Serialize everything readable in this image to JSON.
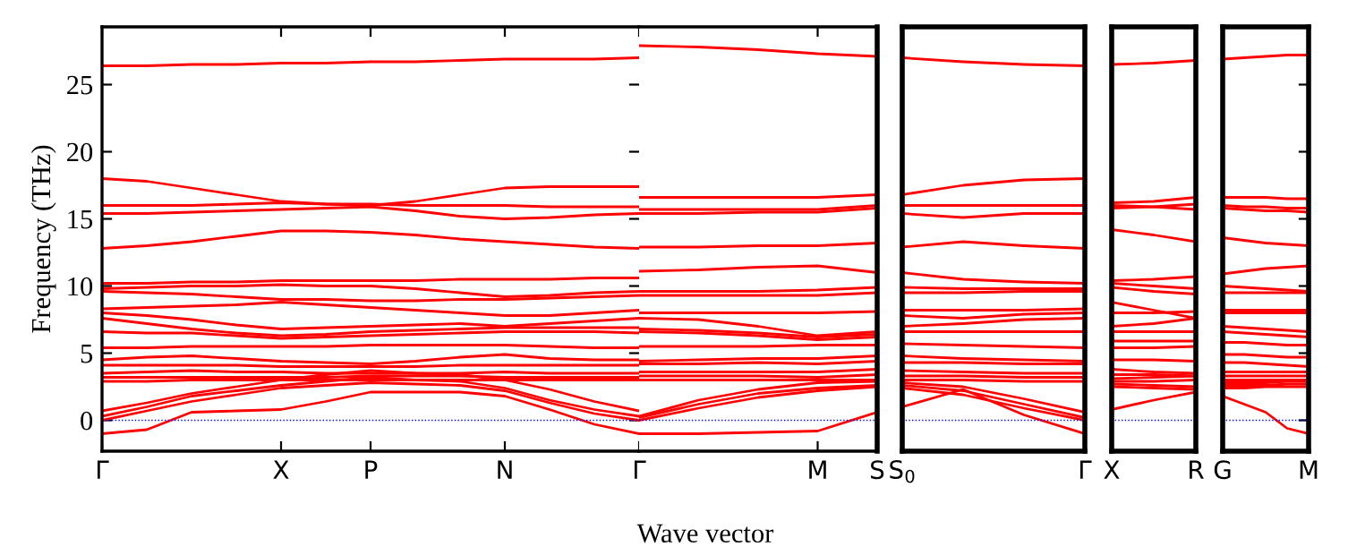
{
  "chart_data": [
    {
      "type": "line",
      "ylabel": "Frequency (THz)",
      "xlabel": "Wave vector",
      "color": "#ff0000",
      "legend": false,
      "grid": false,
      "line_style": "solid",
      "marker": "none",
      "categories": [
        "Γ",
        null,
        null,
        null,
        "X",
        null,
        "P",
        null,
        null,
        "N",
        null,
        null,
        "Γ"
      ],
      "ylim": [
        -2.3,
        29.3
      ],
      "yticks": [
        0,
        5,
        10,
        15,
        20,
        25
      ],
      "ref_lines": [
        {
          "axis": "y",
          "value": 0,
          "label": null,
          "color": "#0000ff",
          "line_style": "dotted"
        }
      ],
      "series": [
        {
          "values": [
            26.4,
            26.4,
            26.5,
            26.5,
            26.6,
            26.6,
            26.7,
            26.7,
            26.8,
            26.9,
            26.9,
            26.9,
            27.0
          ]
        },
        {
          "values": [
            18.0,
            17.8,
            17.3,
            16.8,
            16.3,
            16.1,
            16.0,
            16.3,
            16.8,
            17.3,
            17.4,
            17.4,
            17.4
          ]
        },
        {
          "values": [
            16.0,
            16.0,
            16.0,
            16.1,
            16.2,
            16.1,
            16.1,
            16.0,
            16.0,
            16.0,
            15.9,
            15.9,
            15.9
          ]
        },
        {
          "values": [
            15.4,
            15.4,
            15.5,
            15.6,
            15.7,
            15.8,
            15.9,
            15.6,
            15.2,
            15.0,
            15.1,
            15.3,
            15.4
          ]
        },
        {
          "values": [
            12.8,
            13.0,
            13.3,
            13.7,
            14.1,
            14.1,
            14.0,
            13.8,
            13.5,
            13.3,
            13.1,
            12.9,
            12.8
          ]
        },
        {
          "values": [
            10.2,
            10.2,
            10.3,
            10.3,
            10.4,
            10.4,
            10.4,
            10.4,
            10.5,
            10.5,
            10.5,
            10.6,
            10.6
          ]
        },
        {
          "values": [
            9.8,
            9.9,
            10.0,
            10.0,
            10.1,
            10.0,
            10.0,
            9.8,
            9.5,
            9.2,
            9.3,
            9.5,
            9.6
          ]
        },
        {
          "values": [
            9.6,
            9.5,
            9.4,
            9.2,
            9.0,
            9.0,
            8.9,
            8.9,
            9.0,
            9.0,
            9.1,
            9.2,
            9.3
          ]
        },
        {
          "values": [
            8.3,
            8.4,
            8.5,
            8.6,
            8.8,
            8.6,
            8.4,
            8.2,
            8.0,
            7.8,
            7.8,
            8.0,
            8.2
          ]
        },
        {
          "values": [
            8.0,
            7.8,
            7.5,
            7.1,
            6.8,
            6.9,
            7.0,
            7.1,
            7.2,
            7.0,
            7.2,
            7.4,
            7.6
          ]
        },
        {
          "values": [
            7.6,
            7.2,
            6.8,
            6.5,
            6.3,
            6.4,
            6.6,
            6.7,
            6.8,
            6.9,
            6.9,
            6.9,
            6.9
          ]
        },
        {
          "values": [
            6.6,
            6.5,
            6.5,
            6.3,
            6.1,
            6.2,
            6.3,
            6.4,
            6.5,
            6.6,
            6.6,
            6.6,
            6.5
          ]
        },
        {
          "values": [
            5.4,
            5.4,
            5.5,
            5.5,
            5.5,
            5.5,
            5.6,
            5.6,
            5.6,
            5.6,
            5.5,
            5.4,
            5.4
          ]
        },
        {
          "values": [
            4.5,
            4.7,
            4.8,
            4.6,
            4.4,
            4.3,
            4.2,
            4.4,
            4.7,
            4.9,
            4.6,
            4.5,
            4.5
          ]
        },
        {
          "values": [
            4.1,
            4.1,
            4.1,
            4.1,
            4.0,
            4.0,
            4.0,
            4.0,
            4.1,
            4.1,
            4.1,
            4.1,
            4.1
          ]
        },
        {
          "values": [
            3.5,
            3.6,
            3.7,
            3.6,
            3.6,
            3.5,
            3.5,
            3.5,
            3.5,
            3.6,
            3.5,
            3.5,
            3.5
          ]
        },
        {
          "values": [
            3.2,
            3.2,
            3.2,
            3.2,
            3.2,
            3.2,
            3.3,
            3.3,
            3.3,
            3.2,
            3.2,
            3.2,
            3.2
          ]
        },
        {
          "values": [
            2.9,
            2.9,
            3.0,
            3.0,
            3.0,
            3.0,
            3.0,
            3.0,
            3.0,
            3.0,
            3.0,
            3.0,
            3.0
          ]
        },
        {
          "values": [
            0.7,
            1.3,
            2.0,
            2.5,
            3.0,
            3.4,
            3.7,
            3.5,
            3.4,
            3.0,
            2.3,
            1.4,
            0.7
          ]
        },
        {
          "values": [
            0.3,
            1.0,
            1.8,
            2.2,
            2.6,
            2.9,
            3.2,
            3.0,
            2.9,
            2.4,
            1.5,
            0.8,
            0.3
          ]
        },
        {
          "values": [
            0.0,
            0.7,
            1.4,
            1.9,
            2.4,
            2.6,
            2.8,
            2.7,
            2.6,
            2.2,
            1.3,
            0.5,
            0.0
          ]
        },
        {
          "values": [
            -1.0,
            -0.7,
            0.6,
            0.7,
            0.8,
            1.4,
            2.1,
            2.1,
            2.1,
            1.8,
            0.8,
            -0.3,
            -1.0
          ]
        }
      ]
    },
    {
      "type": "line",
      "color": "#ff0000",
      "legend": false,
      "grid": false,
      "line_style": "solid",
      "marker": "none",
      "tick_labels": "x",
      "categories": [
        null,
        null,
        null,
        "M",
        "S"
      ],
      "ylim": [
        -2.3,
        29.3
      ],
      "ref_lines": [
        {
          "axis": "y",
          "value": 0,
          "label": null,
          "color": "#0000ff",
          "line_style": "dotted"
        }
      ],
      "series": [
        {
          "values": [
            27.9,
            27.8,
            27.6,
            27.3,
            27.1
          ]
        },
        {
          "values": [
            16.6,
            16.6,
            16.6,
            16.6,
            16.8
          ]
        },
        {
          "values": [
            15.7,
            15.7,
            15.7,
            15.7,
            16.0
          ]
        },
        {
          "values": [
            15.4,
            15.4,
            15.5,
            15.5,
            15.8
          ]
        },
        {
          "values": [
            12.9,
            12.9,
            13.0,
            13.0,
            13.2
          ]
        },
        {
          "values": [
            11.1,
            11.2,
            11.4,
            11.5,
            11.0
          ]
        },
        {
          "values": [
            9.6,
            9.6,
            9.6,
            9.7,
            9.9
          ]
        },
        {
          "values": [
            9.3,
            9.3,
            9.3,
            9.3,
            9.5
          ]
        },
        {
          "values": [
            8.0,
            8.0,
            8.0,
            8.0,
            8.1
          ]
        },
        {
          "values": [
            7.6,
            7.5,
            7.0,
            6.3,
            6.6
          ]
        },
        {
          "values": [
            6.8,
            6.7,
            6.5,
            6.2,
            6.4
          ]
        },
        {
          "values": [
            6.6,
            6.5,
            6.3,
            6.0,
            6.2
          ]
        },
        {
          "values": [
            5.5,
            5.5,
            5.5,
            5.6,
            5.6
          ]
        },
        {
          "values": [
            4.4,
            4.5,
            4.6,
            4.6,
            4.8
          ]
        },
        {
          "values": [
            4.2,
            4.2,
            4.3,
            4.2,
            4.4
          ]
        },
        {
          "values": [
            3.6,
            3.6,
            3.6,
            3.6,
            3.8
          ]
        },
        {
          "values": [
            3.3,
            3.3,
            3.3,
            3.2,
            3.4
          ]
        },
        {
          "values": [
            3.0,
            3.0,
            3.0,
            3.0,
            3.0
          ]
        },
        {
          "values": [
            0.3,
            1.5,
            2.3,
            2.8,
            2.9
          ]
        },
        {
          "values": [
            0.2,
            1.2,
            2.0,
            2.4,
            2.6
          ]
        },
        {
          "values": [
            0.0,
            0.9,
            1.7,
            2.2,
            2.5
          ]
        },
        {
          "values": [
            -1.0,
            -1.0,
            -0.9,
            -0.8,
            0.6
          ]
        }
      ]
    },
    {
      "type": "line",
      "color": "#ff0000",
      "legend": false,
      "grid": false,
      "line_style": "solid",
      "marker": "none",
      "tick_labels": "x",
      "categories": [
        "S$_{0}$",
        null,
        null,
        "Γ"
      ],
      "ylim": [
        -2.3,
        29.3
      ],
      "ref_lines": [
        {
          "axis": "y",
          "value": 0,
          "label": null,
          "color": "#0000ff",
          "line_style": "dotted"
        }
      ],
      "series": [
        {
          "values": [
            27.0,
            26.7,
            26.5,
            26.4
          ]
        },
        {
          "values": [
            16.8,
            17.5,
            17.9,
            18.0
          ]
        },
        {
          "values": [
            16.0,
            16.0,
            16.0,
            16.0
          ]
        },
        {
          "values": [
            15.4,
            15.1,
            15.4,
            15.4
          ]
        },
        {
          "values": [
            12.9,
            13.3,
            13.0,
            12.8
          ]
        },
        {
          "values": [
            11.0,
            10.5,
            10.3,
            10.2
          ]
        },
        {
          "values": [
            9.9,
            9.8,
            9.8,
            9.8
          ]
        },
        {
          "values": [
            9.5,
            9.5,
            9.6,
            9.6
          ]
        },
        {
          "values": [
            8.2,
            8.2,
            8.2,
            8.3
          ]
        },
        {
          "values": [
            7.8,
            7.6,
            7.9,
            8.0
          ]
        },
        {
          "values": [
            7.0,
            7.2,
            7.5,
            7.6
          ]
        },
        {
          "values": [
            6.6,
            6.6,
            6.6,
            6.6
          ]
        },
        {
          "values": [
            5.7,
            5.6,
            5.5,
            5.4
          ]
        },
        {
          "values": [
            4.8,
            4.6,
            4.5,
            4.4
          ]
        },
        {
          "values": [
            4.3,
            4.3,
            4.2,
            4.2
          ]
        },
        {
          "values": [
            3.7,
            3.6,
            3.5,
            3.5
          ]
        },
        {
          "values": [
            3.3,
            3.3,
            3.2,
            3.2
          ]
        },
        {
          "values": [
            3.0,
            3.0,
            2.9,
            2.9
          ]
        },
        {
          "values": [
            2.8,
            2.5,
            1.6,
            0.6
          ]
        },
        {
          "values": [
            2.6,
            2.2,
            1.2,
            0.2
          ]
        },
        {
          "values": [
            2.4,
            1.9,
            0.9,
            0.0
          ]
        },
        {
          "values": [
            1.0,
            2.3,
            0.4,
            -1.0
          ]
        }
      ]
    },
    {
      "type": "line",
      "color": "#ff0000",
      "legend": false,
      "grid": false,
      "line_style": "solid",
      "marker": "none",
      "tick_labels": "x",
      "categories": [
        "X",
        null,
        "R"
      ],
      "ylim": [
        -2.3,
        29.3
      ],
      "ref_lines": [
        {
          "axis": "y",
          "value": 0,
          "label": null,
          "color": "#0000ff",
          "line_style": "dotted"
        }
      ],
      "series": [
        {
          "values": [
            26.5,
            26.6,
            26.8
          ]
        },
        {
          "values": [
            16.2,
            16.3,
            16.6
          ]
        },
        {
          "values": [
            16.0,
            15.9,
            15.7
          ]
        },
        {
          "values": [
            15.8,
            15.9,
            16.1
          ]
        },
        {
          "values": [
            14.2,
            13.8,
            13.3
          ]
        },
        {
          "values": [
            10.4,
            10.5,
            10.7
          ]
        },
        {
          "values": [
            10.2,
            10.0,
            9.8
          ]
        },
        {
          "values": [
            9.9,
            9.6,
            9.4
          ]
        },
        {
          "values": [
            8.8,
            8.2,
            7.6
          ]
        },
        {
          "values": [
            8.0,
            8.0,
            8.1
          ]
        },
        {
          "values": [
            7.0,
            7.2,
            7.6
          ]
        },
        {
          "values": [
            6.6,
            6.6,
            6.6
          ]
        },
        {
          "values": [
            5.9,
            5.9,
            5.9
          ]
        },
        {
          "values": [
            5.4,
            5.4,
            5.5
          ]
        },
        {
          "values": [
            4.5,
            4.5,
            4.4
          ]
        },
        {
          "values": [
            3.8,
            3.6,
            3.5
          ]
        },
        {
          "values": [
            3.4,
            3.4,
            3.3
          ]
        },
        {
          "values": [
            3.1,
            3.2,
            3.3
          ]
        },
        {
          "values": [
            2.9,
            2.9,
            3.0
          ]
        },
        {
          "values": [
            2.7,
            2.6,
            2.5
          ]
        },
        {
          "values": [
            2.5,
            2.4,
            2.3
          ]
        },
        {
          "values": [
            0.8,
            1.5,
            2.1
          ]
        }
      ]
    },
    {
      "type": "line",
      "color": "#ff0000",
      "legend": false,
      "grid": false,
      "line_style": "solid",
      "marker": "none",
      "tick_labels": "x",
      "categories": [
        "G",
        null,
        null,
        null,
        "M"
      ],
      "ylim": [
        -2.3,
        29.3
      ],
      "yticks": [
        {
          "value": 0,
          "label": null
        },
        {
          "value": 5,
          "label": null
        },
        {
          "value": 10,
          "label": null
        },
        {
          "value": 15,
          "label": null
        },
        {
          "value": 20,
          "label": null
        },
        {
          "value": 25,
          "label": null
        }
      ],
      "ref_lines": [
        {
          "axis": "y",
          "value": 0,
          "label": null,
          "color": "#0000ff",
          "line_style": "dotted"
        }
      ],
      "series": [
        {
          "values": [
            26.9,
            27.0,
            27.1,
            27.2,
            27.2
          ]
        },
        {
          "values": [
            16.6,
            16.6,
            16.6,
            16.5,
            16.5
          ]
        },
        {
          "values": [
            16.0,
            15.9,
            15.9,
            15.8,
            15.8
          ]
        },
        {
          "values": [
            15.8,
            15.7,
            15.6,
            15.6,
            15.5
          ]
        },
        {
          "values": [
            13.6,
            13.4,
            13.2,
            13.1,
            13.0
          ]
        },
        {
          "values": [
            10.9,
            11.1,
            11.3,
            11.4,
            11.5
          ]
        },
        {
          "values": [
            10.0,
            9.9,
            9.8,
            9.7,
            9.6
          ]
        },
        {
          "values": [
            9.5,
            9.5,
            9.5,
            9.5,
            9.5
          ]
        },
        {
          "values": [
            8.2,
            8.2,
            8.2,
            8.2,
            8.2
          ]
        },
        {
          "values": [
            8.0,
            8.0,
            8.0,
            8.0,
            8.0
          ]
        },
        {
          "values": [
            7.0,
            6.9,
            6.8,
            6.7,
            6.6
          ]
        },
        {
          "values": [
            6.6,
            6.5,
            6.4,
            6.3,
            6.2
          ]
        },
        {
          "values": [
            5.8,
            5.8,
            5.7,
            5.6,
            5.6
          ]
        },
        {
          "values": [
            4.9,
            4.9,
            4.8,
            4.7,
            4.7
          ]
        },
        {
          "values": [
            4.3,
            4.3,
            4.2,
            4.1,
            4.0
          ]
        },
        {
          "values": [
            3.6,
            3.6,
            3.6,
            3.6,
            3.6
          ]
        },
        {
          "values": [
            3.3,
            3.3,
            3.3,
            3.3,
            3.3
          ]
        },
        {
          "values": [
            3.0,
            3.0,
            3.0,
            3.0,
            3.0
          ]
        },
        {
          "values": [
            2.8,
            2.8,
            2.8,
            2.9,
            2.9
          ]
        },
        {
          "values": [
            2.6,
            2.6,
            2.6,
            2.7,
            2.7
          ]
        },
        {
          "values": [
            2.4,
            2.4,
            2.5,
            2.5,
            2.5
          ]
        },
        {
          "values": [
            1.8,
            1.2,
            0.6,
            -0.6,
            -1.0
          ]
        }
      ]
    }
  ]
}
